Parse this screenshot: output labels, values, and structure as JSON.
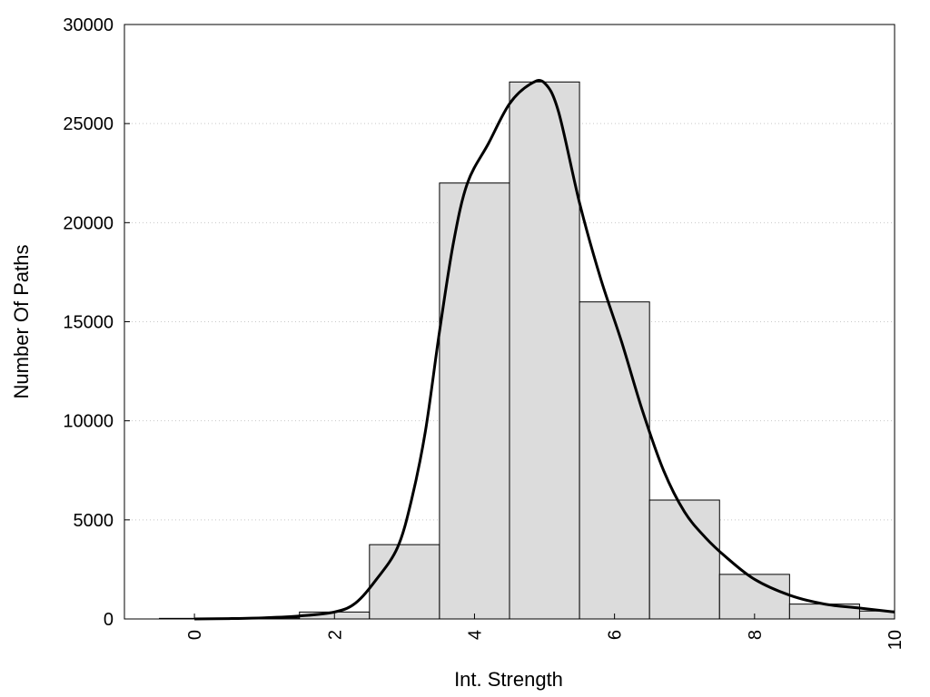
{
  "chart_data": {
    "type": "bar",
    "title": "",
    "xlabel": "Int. Strength",
    "ylabel": "Number Of Paths",
    "xlim": [
      -1,
      10
    ],
    "ylim": [
      0,
      30000
    ],
    "xticks": [
      "0",
      "2",
      "4",
      "6",
      "8",
      "10"
    ],
    "yticks": [
      "0",
      "5000",
      "10000",
      "15000",
      "20000",
      "25000",
      "30000"
    ],
    "grid": "horizontal dotted",
    "bars": {
      "categories": [
        "0",
        "1",
        "2",
        "3",
        "4",
        "5",
        "6",
        "7",
        "8",
        "9",
        "10"
      ],
      "values": [
        30,
        50,
        350,
        3750,
        22000,
        27100,
        16000,
        6000,
        2250,
        750,
        400
      ],
      "fill": "#dcdcdc",
      "edge": "#000000"
    },
    "curve": {
      "x": [
        0,
        0.5,
        1,
        1.5,
        2,
        2.3,
        2.6,
        2.9,
        3.1,
        3.3,
        3.5,
        3.7,
        3.9,
        4.2,
        4.5,
        4.8,
        5.0,
        5.2,
        5.5,
        5.8,
        6.1,
        6.4,
        6.7,
        7.0,
        7.3,
        7.6,
        8.0,
        8.5,
        9.0,
        9.5,
        10.0
      ],
      "y": [
        0,
        20,
        60,
        150,
        350,
        800,
        2000,
        3600,
        6000,
        9500,
        14500,
        19000,
        22000,
        24000,
        26000,
        27000,
        27050,
        25600,
        21000,
        17200,
        14000,
        10500,
        7500,
        5400,
        4100,
        3100,
        2000,
        1200,
        750,
        550,
        350
      ],
      "color": "#000000"
    }
  }
}
